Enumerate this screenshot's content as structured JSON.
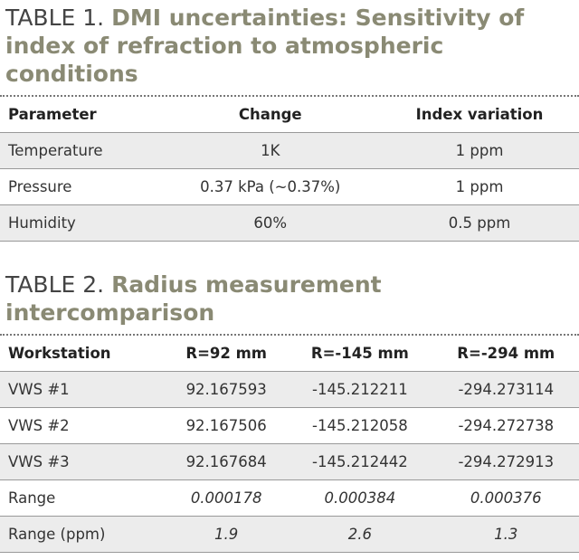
{
  "table1": {
    "title": {
      "label": "TABLE 1.",
      "text": "DMI uncertainties: Sensitivity of index of refraction to atmospheric conditions"
    },
    "header": [
      "Parameter",
      "Change",
      "Index variation"
    ],
    "rows": [
      [
        "Temperature",
        "1K",
        "1 ppm"
      ],
      [
        "Pressure",
        "0.37 kPa (~0.37%)",
        "1 ppm"
      ],
      [
        "Humidity",
        "60%",
        "0.5 ppm"
      ]
    ]
  },
  "table2": {
    "title": {
      "label": "TABLE 2.",
      "text": "Radius measurement intercomparison"
    },
    "header": [
      "Workstation",
      "R=92 mm",
      "R=-145 mm",
      "R=-294 mm"
    ],
    "rows": [
      [
        "VWS #1",
        "92.167593",
        "-145.212211",
        "-294.273114"
      ],
      [
        "VWS #2",
        "92.167506",
        "-145.212058",
        "-294.272738"
      ],
      [
        "VWS #3",
        "92.167684",
        "-145.212442",
        "-294.272913"
      ],
      [
        "Range",
        "0.000178",
        "0.000384",
        "0.000376"
      ],
      [
        "Range (ppm)",
        "1.9",
        "2.6",
        "1.3"
      ]
    ]
  }
}
